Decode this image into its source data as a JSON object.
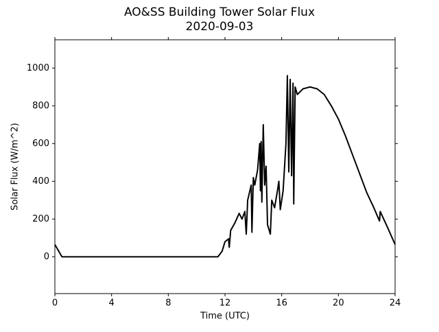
{
  "chart_data": {
    "type": "line",
    "title": "AO&SS Building Tower Solar Flux",
    "subtitle": "2020-09-03",
    "x_label": "Time (UTC)",
    "y_label": "Solar Flux (W/m^2)",
    "color": "#000000",
    "x": [
      0,
      0.5,
      11.5,
      11.8,
      12.0,
      12.25,
      12.3,
      12.4,
      12.7,
      13.0,
      13.2,
      13.4,
      13.5,
      13.6,
      13.85,
      13.9,
      14.0,
      14.1,
      14.3,
      14.45,
      14.5,
      14.55,
      14.6,
      14.7,
      14.8,
      14.9,
      15.0,
      15.2,
      15.3,
      15.5,
      15.7,
      15.8,
      15.9,
      16.1,
      16.3,
      16.4,
      16.5,
      16.6,
      16.7,
      16.8,
      16.85,
      16.95,
      17.1,
      17.5,
      18.0,
      18.5,
      19.0,
      19.5,
      20.0,
      20.5,
      21.0,
      21.5,
      22.0,
      22.5,
      22.9,
      22.95,
      23.5,
      24.0
    ],
    "values": [
      65,
      0,
      0,
      30,
      80,
      95,
      50,
      140,
      180,
      230,
      200,
      240,
      120,
      300,
      380,
      130,
      420,
      380,
      460,
      600,
      350,
      610,
      290,
      700,
      380,
      480,
      170,
      120,
      300,
      260,
      350,
      400,
      250,
      350,
      600,
      960,
      450,
      940,
      430,
      920,
      280,
      900,
      860,
      890,
      900,
      890,
      860,
      800,
      730,
      640,
      540,
      440,
      340,
      260,
      190,
      240,
      150,
      65
    ],
    "xlim": [
      0,
      24
    ],
    "xticks": [
      0,
      4,
      8,
      12,
      16,
      20,
      24
    ],
    "ylim": [
      -195,
      1150
    ],
    "yticks": [
      0,
      200,
      400,
      600,
      800,
      1000
    ]
  }
}
